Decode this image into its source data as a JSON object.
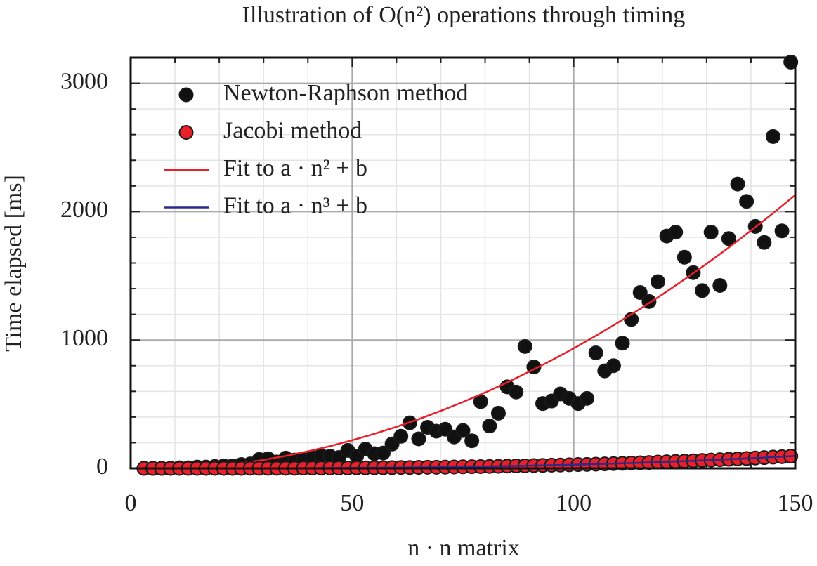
{
  "chart_data": {
    "type": "scatter",
    "title": "Illustration of O(n²) operations through timing",
    "x_label": "n · n matrix",
    "y_label": "Time elapsed [ms]",
    "xlim": [
      0,
      150
    ],
    "xticks": [
      0,
      50,
      100,
      150
    ],
    "xminorticks": [
      10,
      20,
      30,
      40,
      60,
      70,
      80,
      90,
      110,
      120,
      130,
      140
    ],
    "ylim": [
      0,
      3200
    ],
    "yticks": [
      0,
      1000,
      2000,
      3000
    ],
    "yminorticks": [
      200,
      400,
      600,
      800,
      1200,
      1400,
      1600,
      1800,
      2200,
      2400,
      2600,
      2800,
      3200
    ],
    "grid": true,
    "legend": "upper left",
    "series": [
      {
        "name": "Newton-Raphson method",
        "kind": "marker",
        "color": "#111111",
        "x": [
          3,
          5,
          7,
          9,
          11,
          13,
          15,
          17,
          19,
          21,
          23,
          25,
          27,
          29,
          31,
          33,
          35,
          37,
          39,
          41,
          43,
          45,
          47,
          49,
          51,
          53,
          55,
          57,
          59,
          61,
          63,
          65,
          67,
          69,
          71,
          73,
          75,
          77,
          79,
          81,
          83,
          85,
          87,
          89,
          91,
          93,
          95,
          97,
          99,
          101,
          103,
          105,
          107,
          109,
          111,
          113,
          115,
          117,
          119,
          121,
          123,
          125,
          127,
          129,
          131,
          133,
          135,
          137,
          139,
          141,
          143,
          145,
          147,
          149
        ],
        "values": [
          0,
          0,
          0,
          0,
          5,
          5,
          10,
          10,
          15,
          20,
          20,
          30,
          35,
          70,
          75,
          50,
          80,
          65,
          70,
          85,
          100,
          95,
          85,
          140,
          95,
          150,
          115,
          120,
          190,
          250,
          355,
          230,
          320,
          290,
          305,
          245,
          295,
          215,
          520,
          330,
          430,
          635,
          595,
          950,
          790,
          505,
          525,
          580,
          545,
          505,
          545,
          900,
          760,
          800,
          975,
          1160,
          1370,
          1300,
          1455,
          1810,
          1840,
          1645,
          1525,
          1385,
          1840,
          1425,
          1790,
          2215,
          2080,
          1885,
          1760,
          2585,
          1850,
          3165
        ]
      },
      {
        "name": "Jacobi method",
        "kind": "marker",
        "color": "#e8202a",
        "x": [
          3,
          5,
          7,
          9,
          11,
          13,
          15,
          17,
          19,
          21,
          23,
          25,
          27,
          29,
          31,
          33,
          35,
          37,
          39,
          41,
          43,
          45,
          47,
          49,
          51,
          53,
          55,
          57,
          59,
          61,
          63,
          65,
          67,
          69,
          71,
          73,
          75,
          77,
          79,
          81,
          83,
          85,
          87,
          89,
          91,
          93,
          95,
          97,
          99,
          101,
          103,
          105,
          107,
          109,
          111,
          113,
          115,
          117,
          119,
          121,
          123,
          125,
          127,
          129,
          131,
          133,
          135,
          137,
          139,
          141,
          143,
          145,
          147,
          149
        ],
        "values": [
          0,
          0,
          0,
          0,
          0,
          0,
          0,
          0,
          0,
          0,
          0,
          0,
          1,
          1,
          1,
          1,
          1,
          1,
          2,
          2,
          2,
          3,
          3,
          3,
          4,
          4,
          5,
          5,
          6,
          7,
          7,
          8,
          9,
          9,
          10,
          11,
          12,
          13,
          14,
          15,
          16,
          18,
          19,
          20,
          22,
          23,
          25,
          26,
          28,
          30,
          31,
          33,
          35,
          37,
          39,
          42,
          44,
          46,
          49,
          51,
          54,
          56,
          59,
          62,
          65,
          68,
          71,
          74,
          77,
          81,
          84,
          88,
          91,
          95
        ]
      },
      {
        "name": "Fit to a · n² + b",
        "kind": "line",
        "color": "#e8202a",
        "x": [
          25,
          30,
          35,
          40,
          45,
          50,
          55,
          60,
          65,
          70,
          75,
          80,
          85,
          90,
          95,
          100,
          105,
          110,
          115,
          120,
          125,
          130,
          135,
          140,
          145,
          150
        ],
        "values": [
          40,
          66,
          97,
          133,
          173,
          219,
          269,
          324,
          383,
          448,
          517,
          591,
          670,
          754,
          842,
          935,
          1033,
          1136,
          1243,
          1355,
          1472,
          1594,
          1720,
          1852,
          1988,
          2129
        ]
      },
      {
        "name": "Fit to a · n³ + b",
        "kind": "line",
        "color": "#2a2a8c",
        "x": [
          30,
          40,
          50,
          60,
          70,
          80,
          90,
          100,
          110,
          120,
          130,
          140,
          150
        ],
        "values": [
          0.8,
          1.8,
          3.6,
          6.2,
          9.8,
          14.7,
          20.9,
          28.7,
          38.2,
          49.6,
          63.1,
          78.8,
          96.9
        ]
      }
    ]
  }
}
